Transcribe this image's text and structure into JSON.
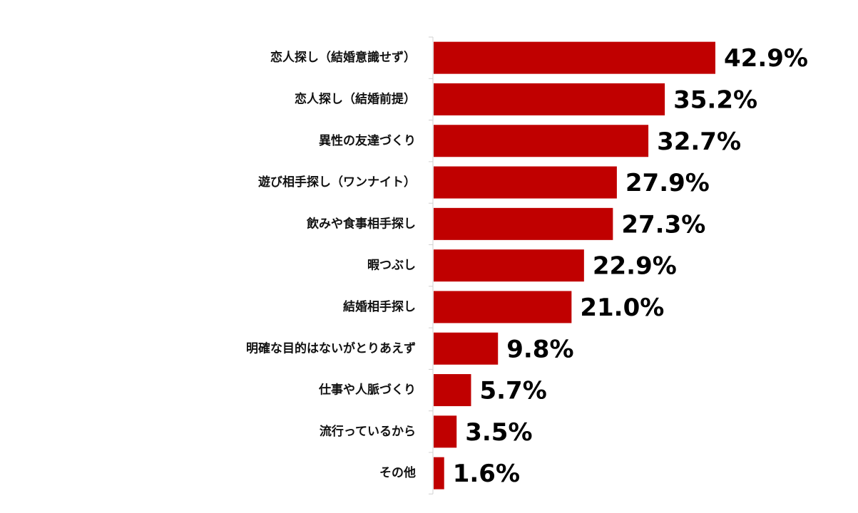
{
  "colors": {
    "bar": "#c00000",
    "axis": "#d0d0d0"
  },
  "chart_data": {
    "type": "bar",
    "orientation": "horizontal",
    "categories": [
      "恋人探し（結婚意識せず）",
      "恋人探し（結婚前提）",
      "異性の友達づくり",
      "遊び相手探し（ワンナイト）",
      "飲みや食事相手探し",
      "暇つぶし",
      "結婚相手探し",
      "明確な目的はないがとりあえず",
      "仕事や人脈づくり",
      "流行っているから",
      "その他"
    ],
    "values": [
      42.9,
      35.2,
      32.7,
      27.9,
      27.3,
      22.9,
      21.0,
      9.8,
      5.7,
      3.5,
      1.6
    ],
    "value_labels": [
      "42.9%",
      "35.2%",
      "32.7%",
      "27.9%",
      "27.3%",
      "22.9%",
      "21.0%",
      "9.8%",
      "5.7%",
      "3.5%",
      "1.6%"
    ],
    "xlim": [
      0,
      50
    ],
    "grid": false,
    "legend": "none",
    "title": "",
    "xlabel": "",
    "ylabel": ""
  }
}
